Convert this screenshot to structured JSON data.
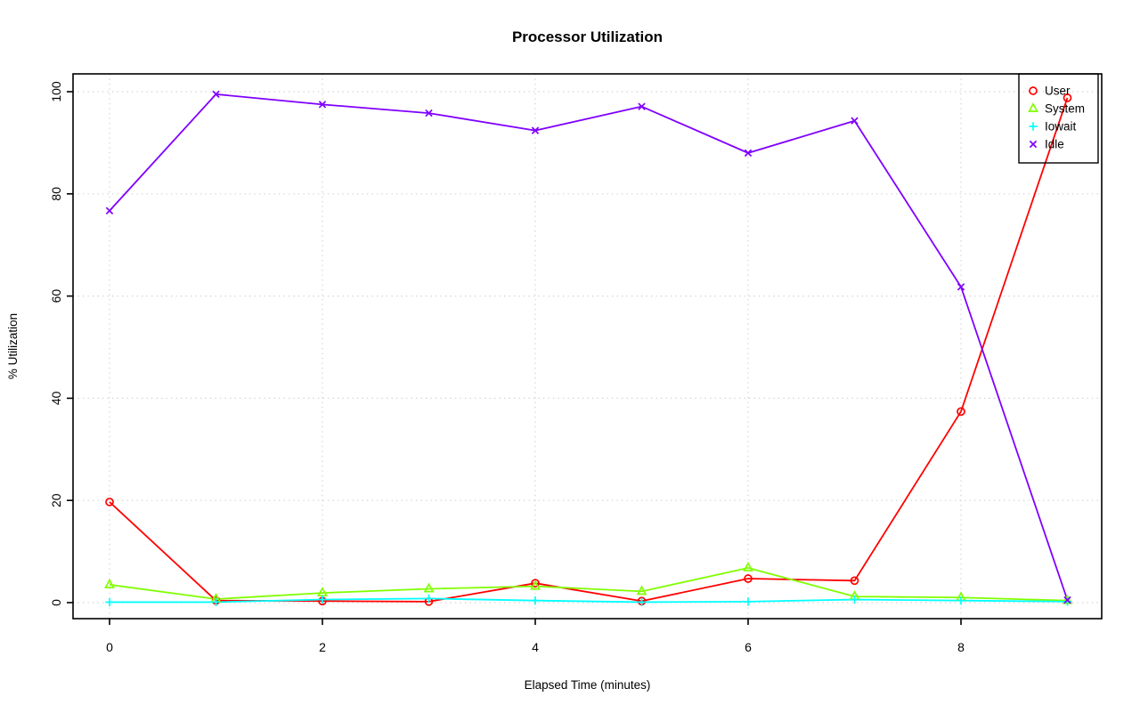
{
  "chart_data": {
    "type": "line",
    "title": "Processor Utilization",
    "xlabel": "Elapsed Time (minutes)",
    "ylabel": "% Utilization",
    "x": [
      0,
      1,
      2,
      3,
      4,
      5,
      6,
      7,
      8,
      9
    ],
    "xticks": [
      0,
      2,
      4,
      6,
      8
    ],
    "yticks": [
      0,
      20,
      40,
      60,
      80,
      100
    ],
    "xlim": [
      -0.36,
      9.36
    ],
    "ylim": [
      -4,
      104
    ],
    "grid": "dotted, at x and y ticks",
    "grid_color": "#CFCFCF",
    "axis_color": "#000000",
    "legend_position": "top-right",
    "legend_entries": [
      "User",
      "System",
      "Iowait",
      "Idle"
    ],
    "series": [
      {
        "name": "User",
        "color": "#FF0000",
        "marker": "circle",
        "values": [
          19.7,
          0.4,
          0.3,
          0.2,
          3.8,
          0.3,
          4.7,
          4.3,
          37.4,
          98.8
        ]
      },
      {
        "name": "System",
        "color": "#80FF00",
        "marker": "triangle",
        "values": [
          3.5,
          0.7,
          1.9,
          2.7,
          3.2,
          2.2,
          6.8,
          1.2,
          1.0,
          0.4
        ]
      },
      {
        "name": "Iowait",
        "color": "#00FFFF",
        "marker": "plus",
        "values": [
          0.1,
          0.1,
          0.6,
          0.8,
          0.4,
          0.1,
          0.2,
          0.6,
          0.4,
          0.2
        ]
      },
      {
        "name": "Idle",
        "color": "#8000FF",
        "marker": "x",
        "values": [
          76.7,
          99.5,
          97.5,
          95.8,
          92.4,
          97.1,
          88.0,
          94.3,
          61.8,
          0.5
        ]
      }
    ]
  }
}
